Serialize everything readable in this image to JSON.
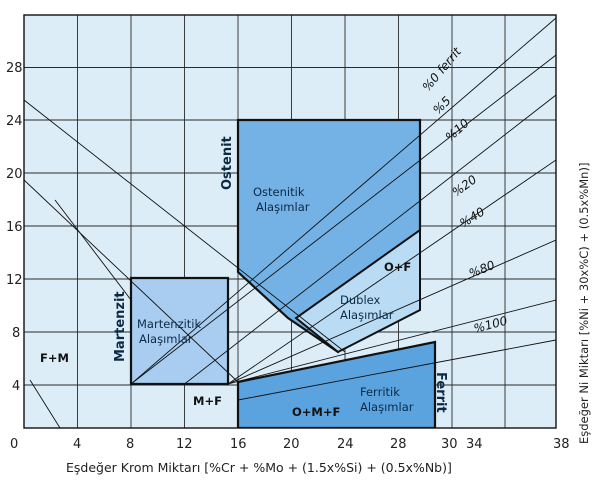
{
  "axes": {
    "x_label": "Eşdeğer Krom Miktarı [%Cr + %Mo + (1.5x%Si) + (0.5x%Nb)]",
    "y_label": "Eşdeğer Ni Miktarı [%Ni + 30x%C) + (0.5x%Mn)]",
    "x_ticks": [
      "0",
      "4",
      "8",
      "12",
      "16",
      "20",
      "24",
      "28",
      "30",
      "34",
      "38"
    ],
    "y_ticks": [
      "4",
      "8",
      "12",
      "16",
      "20",
      "24",
      "28"
    ]
  },
  "ferrite_lines": [
    "%0 ferrit",
    "%5",
    "%10",
    "%20",
    "%40",
    "%80",
    "%100"
  ],
  "regions": {
    "austenite_title": "Ostenit",
    "austenite_alloys": [
      "Ostenitik",
      "Alaşımlar"
    ],
    "martensite_title": "Martenzit",
    "martensite_alloys": [
      "Martenzitik",
      "Alaşımlar"
    ],
    "duplex_alloys": [
      "Dublex",
      "Alaşımlar"
    ],
    "ferrite_title": "Ferrit",
    "ferrite_alloys": [
      "Ferritik",
      "Alaşımlar"
    ],
    "o_f": "O+F",
    "f_m": "F+M",
    "m_f": "M+F",
    "o_m_f": "O+M+F"
  },
  "colors": {
    "background": "#dcedf7",
    "austenite": "#74b2e5",
    "martensite": "#a8cdf0",
    "duplex": "#b9dbf3",
    "ferrite": "#5aa3df",
    "grid": "#2a2a2a"
  }
}
